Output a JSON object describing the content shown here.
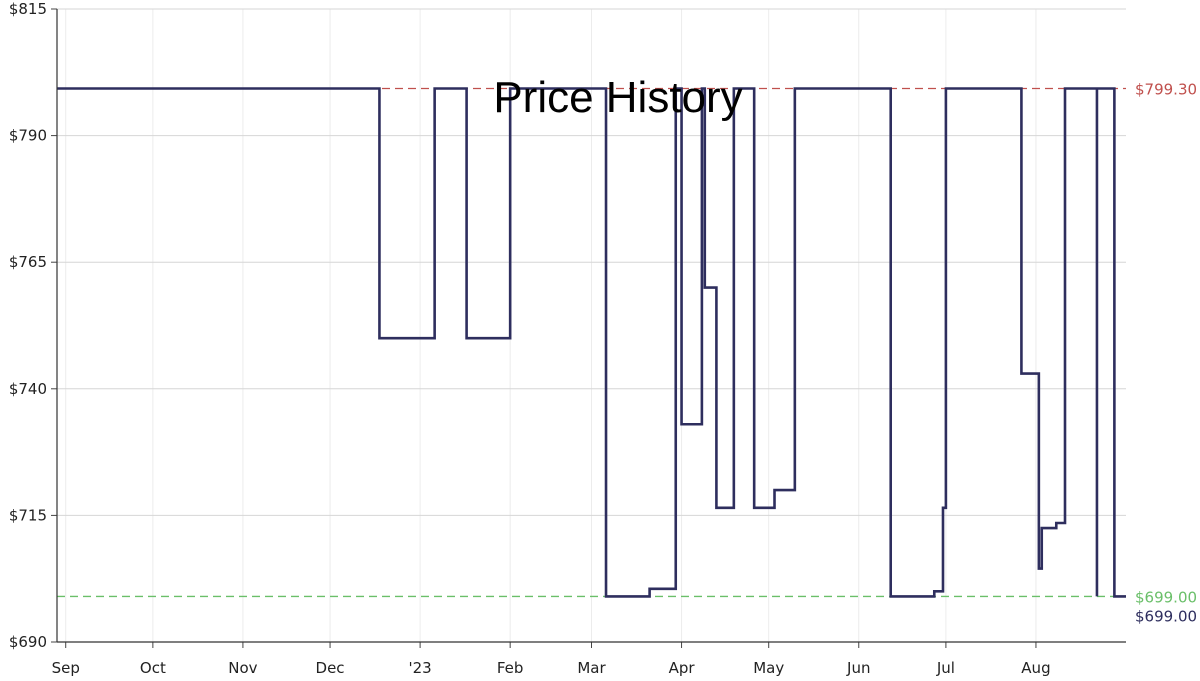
{
  "chart_data": {
    "type": "line",
    "title": "Price History",
    "ylim": [
      690,
      815
    ],
    "y_ticks": [
      690,
      715,
      740,
      765,
      790,
      815
    ],
    "y_tick_labels": [
      "$690",
      "$715",
      "$740",
      "$765",
      "$790",
      "$815"
    ],
    "x_tick_labels": [
      "Sep",
      "Oct",
      "Nov",
      "Dec",
      "'23",
      "Feb",
      "Mar",
      "Apr",
      "May",
      "Jun",
      "Jul",
      "Aug"
    ],
    "x_tick_dates": [
      "2022-09-01",
      "2022-10-01",
      "2022-11-01",
      "2022-12-01",
      "2023-01-01",
      "2023-02-01",
      "2023-03-01",
      "2023-04-01",
      "2023-05-01",
      "2023-06-01",
      "2023-07-01",
      "2023-08-01"
    ],
    "xlim": [
      "2022-08-29",
      "2023-09-01"
    ],
    "grid": true,
    "step": true,
    "series": [
      {
        "color": "#2e2e5e",
        "points": [
          [
            "2022-08-29",
            799.3
          ],
          [
            "2022-12-18",
            749.99
          ],
          [
            "2023-01-06",
            799.3
          ],
          [
            "2023-01-17",
            749.99
          ],
          [
            "2023-02-01",
            799.3
          ],
          [
            "2023-03-06",
            699.0
          ],
          [
            "2023-03-21",
            700.5
          ],
          [
            "2023-03-30",
            799.3
          ],
          [
            "2023-04-01",
            733.0
          ],
          [
            "2023-04-08",
            799.3
          ],
          [
            "2023-04-09",
            760.0
          ],
          [
            "2023-04-13",
            716.5
          ],
          [
            "2023-04-19",
            799.3
          ],
          [
            "2023-04-26",
            716.5
          ],
          [
            "2023-05-03",
            720.0
          ],
          [
            "2023-05-10",
            799.3
          ],
          [
            "2023-06-12",
            699.0
          ],
          [
            "2023-06-27",
            700.0
          ],
          [
            "2023-06-30",
            716.5
          ],
          [
            "2023-07-01",
            799.3
          ],
          [
            "2023-07-27",
            743.0
          ],
          [
            "2023-08-02",
            704.5
          ],
          [
            "2023-08-03",
            712.5
          ],
          [
            "2023-08-08",
            713.5
          ],
          [
            "2023-08-11",
            799.3
          ],
          [
            "2023-08-22",
            699.0
          ],
          [
            "2023-08-22",
            799.3
          ],
          [
            "2023-08-28",
            799.3
          ],
          [
            "2023-08-28",
            699.0
          ],
          [
            "2023-09-01",
            699.0
          ]
        ]
      }
    ],
    "reference_lines": [
      {
        "value": 799.3,
        "label": "$799.30",
        "color": "#c0504d"
      },
      {
        "value": 699.0,
        "label": "$699.00",
        "color": "#6abf69"
      }
    ],
    "current_label": {
      "value": 699.0,
      "label": "$699.00",
      "color": "#2e2e5e"
    }
  }
}
